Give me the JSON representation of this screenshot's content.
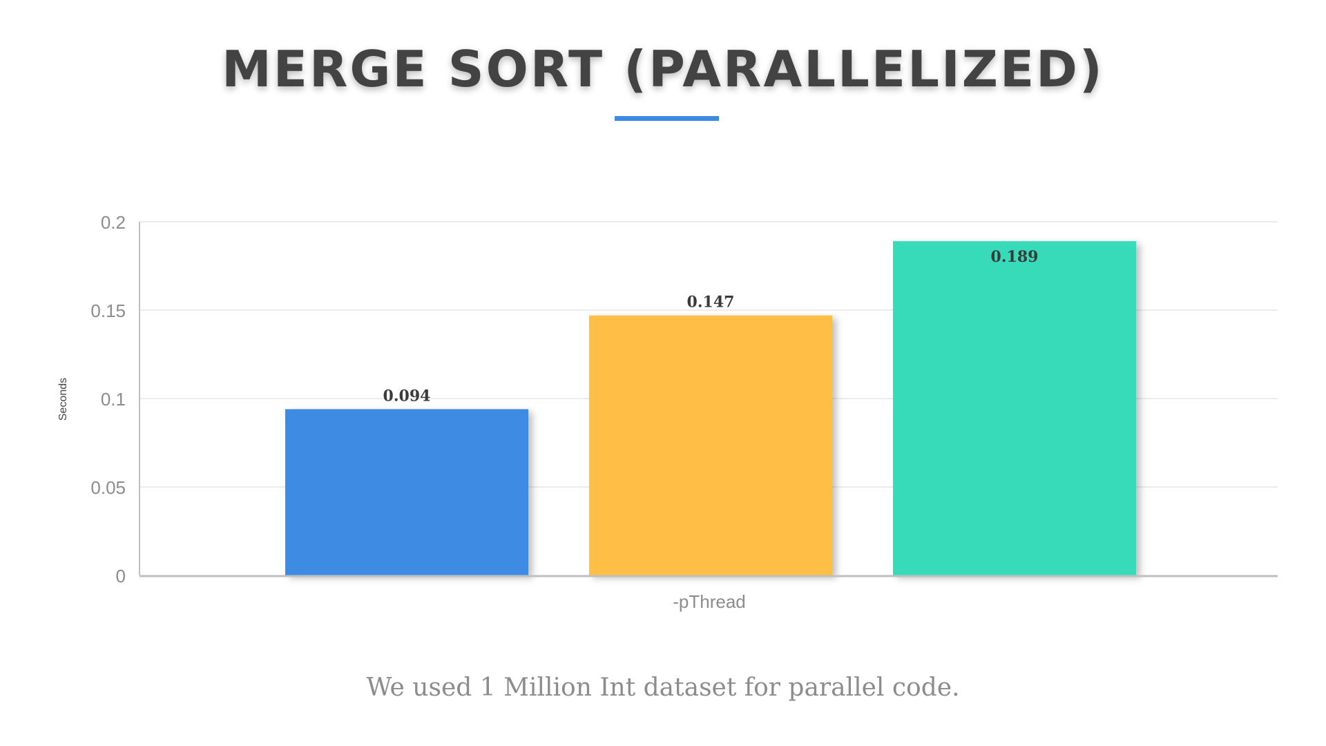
{
  "slide": {
    "title": "MERGE SORT (PARALLELIZED)",
    "caption": "We used 1 Million Int dataset for parallel code.",
    "accent_color": "#3d8be3"
  },
  "chart_data": {
    "type": "bar",
    "title": "",
    "xlabel": "",
    "ylabel": "Seconds",
    "categories": [
      "-pThread"
    ],
    "series": [
      {
        "values": [
          0.094
        ],
        "color": "#3d8be3"
      },
      {
        "values": [
          0.147
        ],
        "color": "#ffbf47"
      },
      {
        "values": [
          0.189
        ],
        "color": "#38dbb9"
      }
    ],
    "ylim": [
      0,
      0.2
    ],
    "yticks": [
      "0",
      "0.05",
      "0.1",
      "0.15",
      "0.2"
    ],
    "data_labels": [
      "0.094",
      "0.147",
      "0.189"
    ],
    "grid": true,
    "legend": "none"
  }
}
